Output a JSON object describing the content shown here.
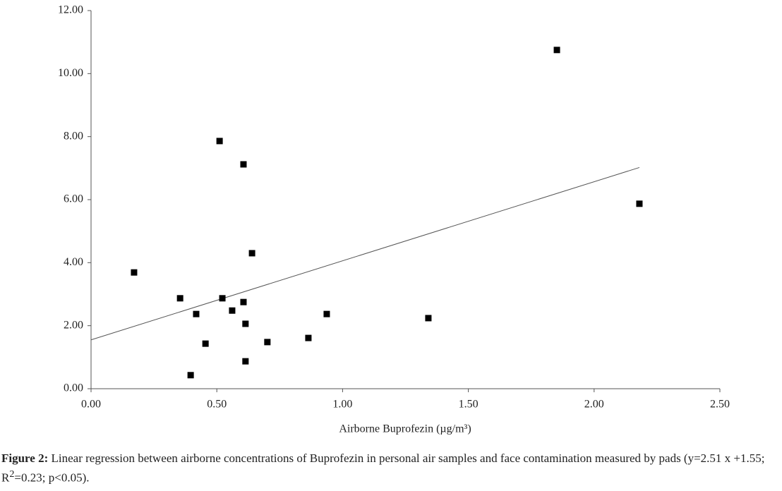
{
  "chart_data": {
    "type": "scatter",
    "xlabel": "Airborne Buprofezin (µg/m³)",
    "x": [
      0.171,
      0.354,
      0.418,
      0.396,
      0.455,
      0.511,
      0.522,
      0.561,
      0.606,
      0.606,
      0.614,
      0.614,
      0.64,
      0.701,
      0.864,
      0.937,
      1.341,
      1.852,
      2.18
    ],
    "values": [
      3.69,
      2.87,
      2.37,
      0.43,
      1.43,
      7.86,
      2.87,
      2.48,
      7.12,
      2.75,
      2.06,
      0.87,
      4.3,
      1.48,
      1.61,
      2.37,
      2.24,
      10.75,
      5.87
    ],
    "color": "#000000",
    "trendline": {
      "x": [
        0,
        2.18
      ],
      "y": [
        1.55,
        7.02
      ],
      "color": "#555555"
    },
    "xlim": [
      0,
      2.5
    ],
    "ylim": [
      0,
      12
    ],
    "xticks": [
      {
        "value": 0,
        "label": "0.00"
      },
      {
        "value": 0.5,
        "label": "0.50"
      },
      {
        "value": 1,
        "label": "1.00"
      },
      {
        "value": 1.5,
        "label": "1.50"
      },
      {
        "value": 2,
        "label": "2.00"
      },
      {
        "value": 2.5,
        "label": "2.50"
      }
    ],
    "yticks": [
      {
        "value": 0,
        "label": "0.00"
      },
      {
        "value": 2,
        "label": "2.00"
      },
      {
        "value": 4,
        "label": "4.00"
      },
      {
        "value": 6,
        "label": "6.00"
      },
      {
        "value": 8,
        "label": "8.00"
      },
      {
        "value": 10,
        "label": "10.00"
      },
      {
        "value": 12,
        "label": "12.00"
      }
    ],
    "grid": false
  },
  "caption": {
    "label": "Figure 2:",
    "text": " Linear regression between airborne concentrations of Buprofezin in personal air samples and face contamination measured by pads (y=2.51 x +1.55; R",
    "sup": "2",
    "tail": "=0.23; p<0.05)."
  }
}
